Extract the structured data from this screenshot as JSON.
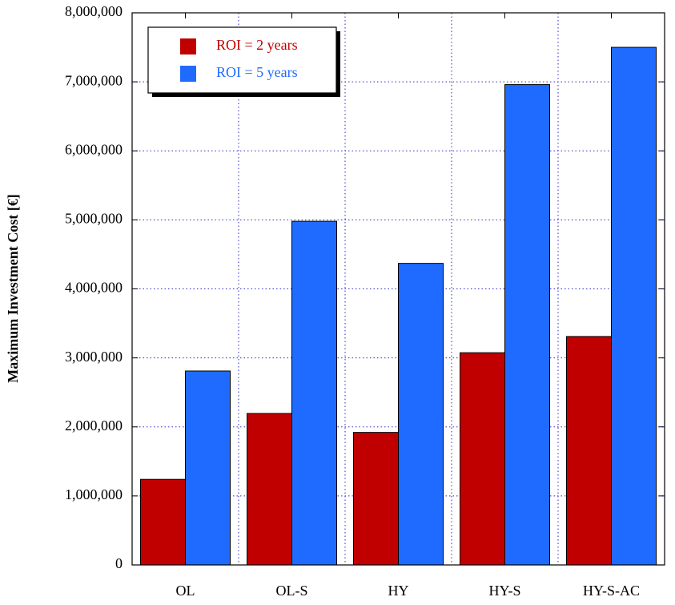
{
  "chart_data": {
    "type": "bar",
    "y_label": "Maximum Investment Cost [€]",
    "categories": [
      "OL",
      "OL-S",
      "HY",
      "HY-S",
      "HY-S-AC"
    ],
    "series": [
      {
        "name": "ROI = 2 years",
        "color": "#c00000",
        "values": [
          1240000,
          2195000,
          1920000,
          3075000,
          3310000
        ]
      },
      {
        "name": "ROI = 5 years",
        "color": "#1f6bff",
        "values": [
          2810000,
          4980000,
          4370000,
          6960000,
          7500000
        ]
      }
    ],
    "ylim": [
      0,
      8000000
    ],
    "yticks": [
      0,
      {
        "value": 1000000,
        "label": "1,000,000"
      },
      {
        "value": 2000000,
        "label": "2,000,000"
      },
      {
        "value": 3000000,
        "label": "3,000,000"
      },
      {
        "value": 4000000,
        "label": "4,000,000"
      },
      {
        "value": 5000000,
        "label": "5,000,000"
      },
      {
        "value": 6000000,
        "label": "6,000,000"
      },
      {
        "value": 7000000,
        "label": "7,000,000"
      },
      {
        "value": 8000000,
        "label": "8,000,000"
      }
    ],
    "grid": true,
    "legend": "upper left"
  }
}
